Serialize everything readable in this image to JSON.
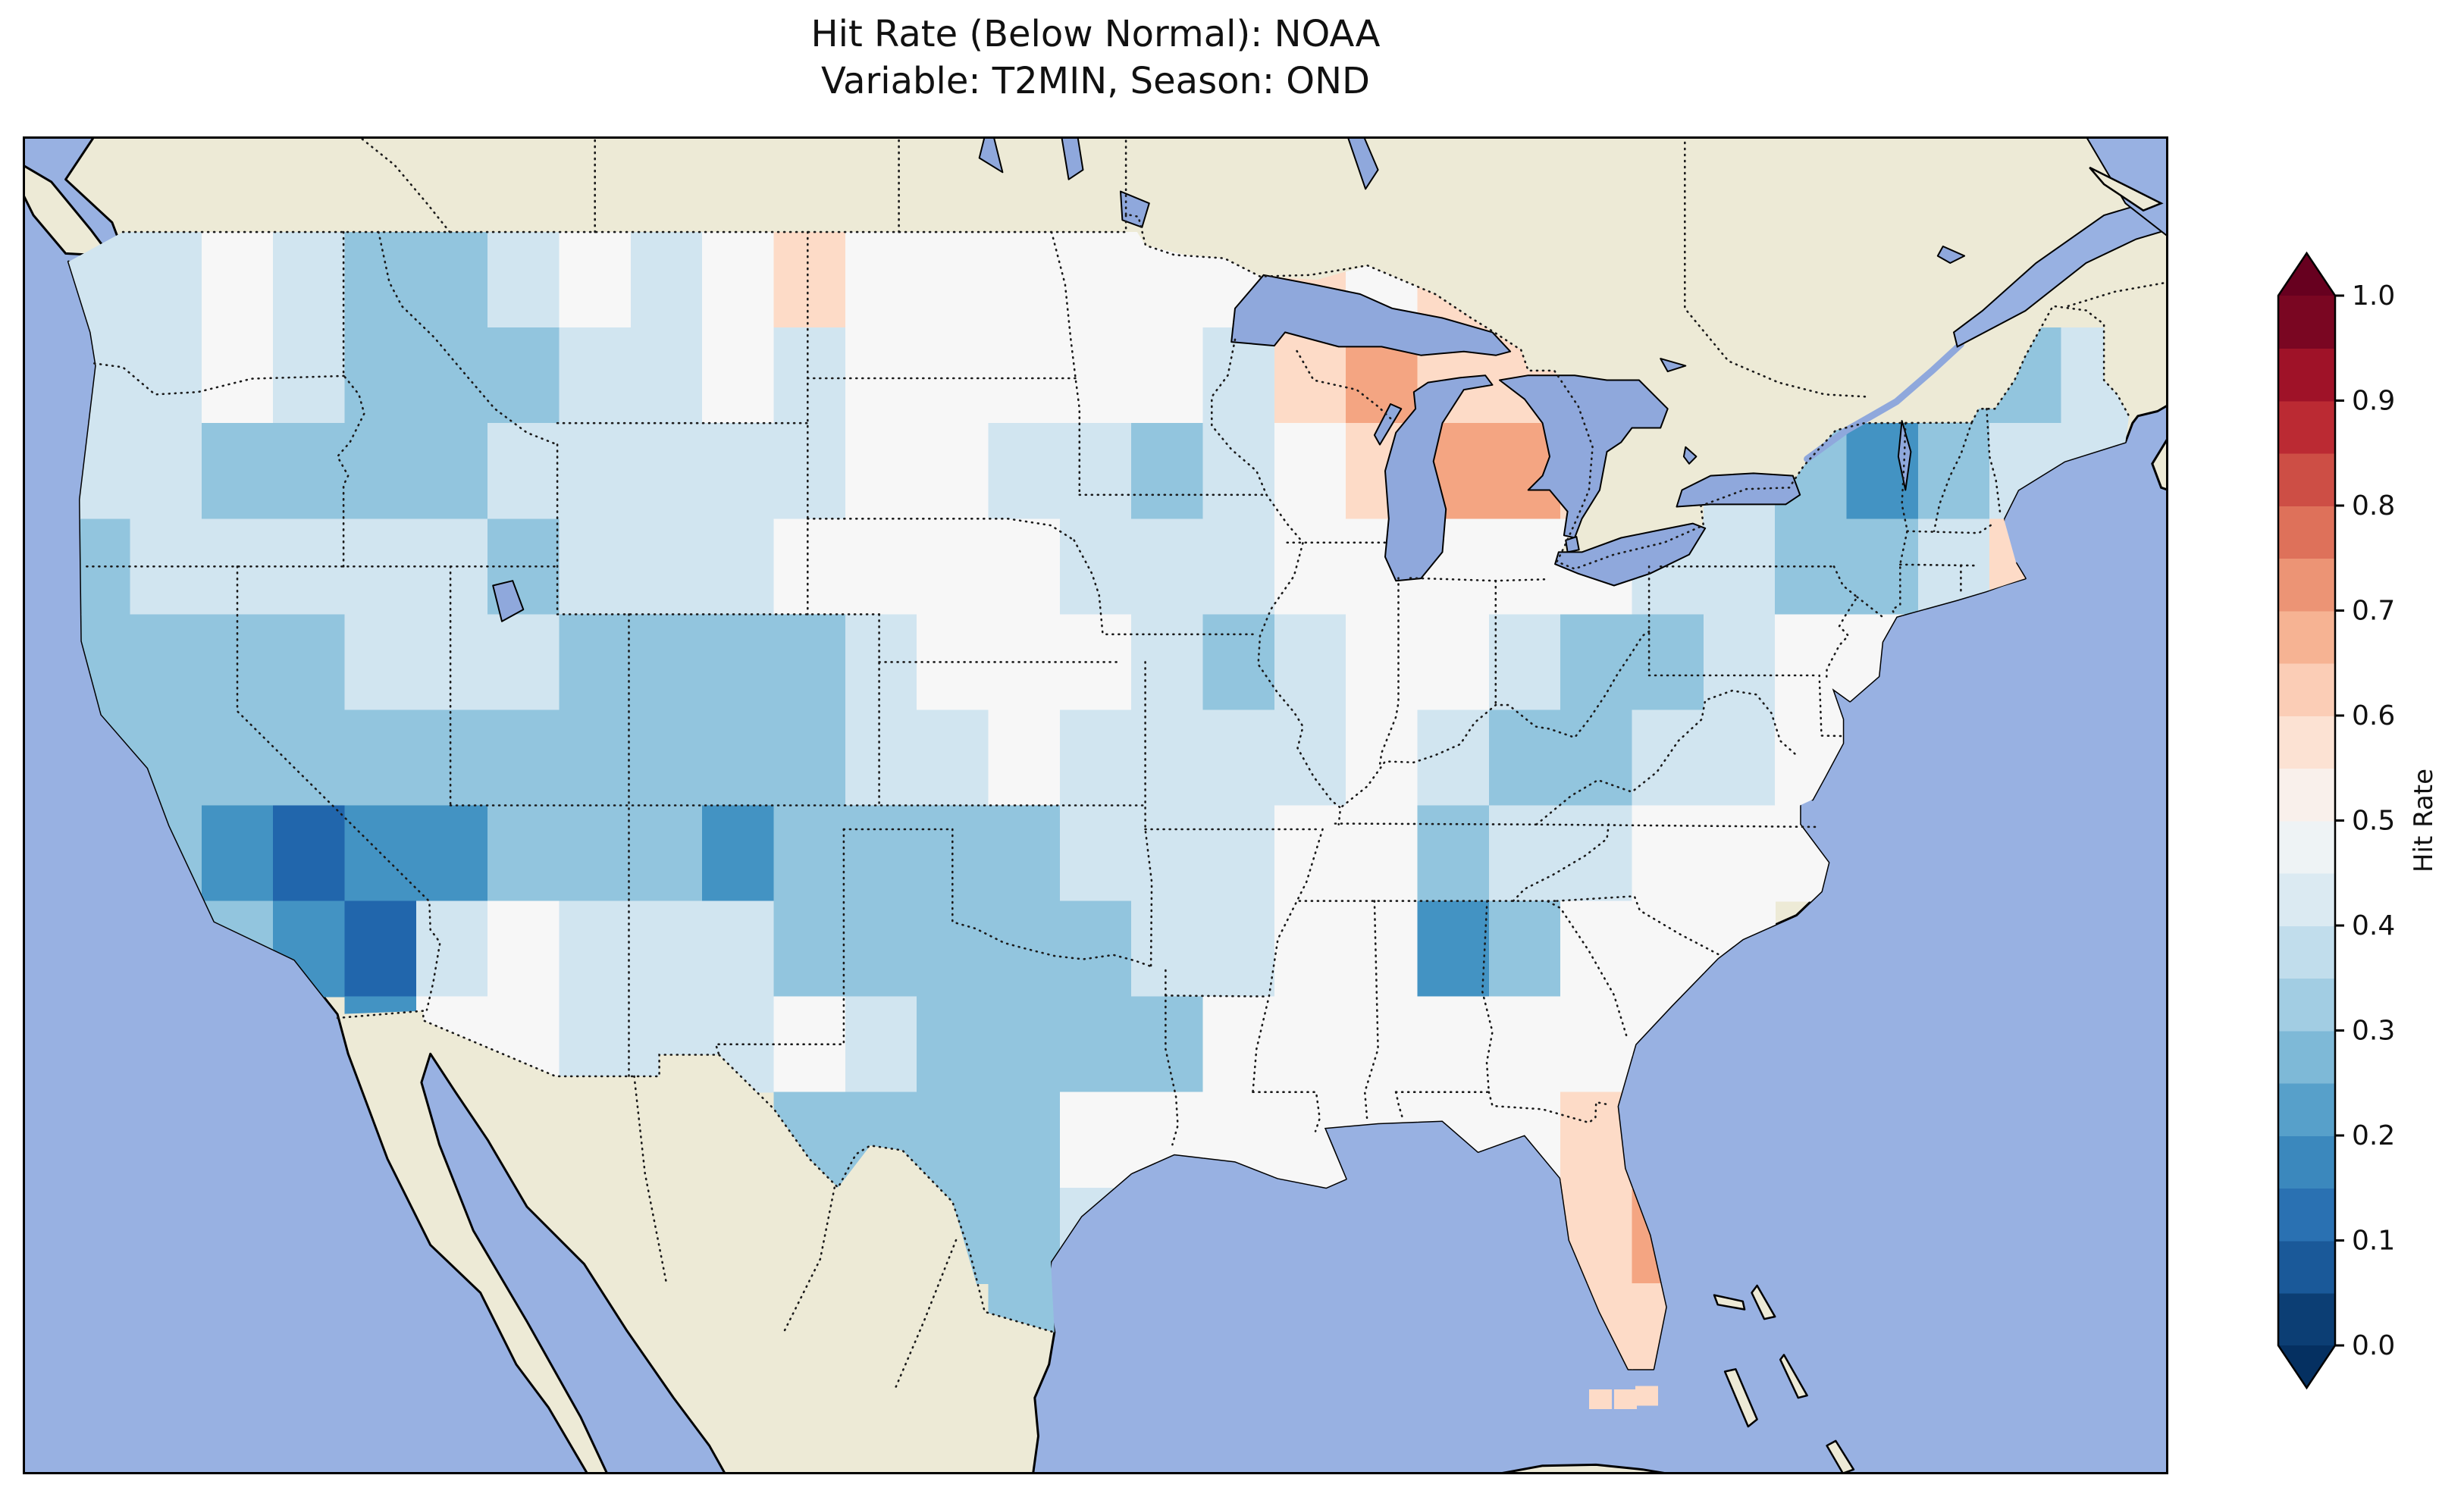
{
  "title": {
    "line1": "Hit Rate (Below Normal): NOAA",
    "line2": "Variable: T2MIN, Season: OND"
  },
  "colorbar": {
    "label": "Hit Rate",
    "tick_labels": [
      "1.0",
      "0.9",
      "0.8",
      "0.7",
      "0.6",
      "0.5",
      "0.4",
      "0.3",
      "0.2",
      "0.1",
      "0.0"
    ],
    "tick_values": [
      1.0,
      0.9,
      0.8,
      0.7,
      0.6,
      0.5,
      0.4,
      0.3,
      0.2,
      0.1,
      0.0
    ],
    "colormap": "RdBu_r",
    "vmin": 0.0,
    "vmax": 1.0,
    "extend": "both"
  },
  "map": {
    "region": "Contiguous United States with surrounding Canada, Mexico, oceans",
    "ocean_color": "#98b1e2",
    "land_color": "#edead6",
    "lake_color": "#8fa8dc",
    "border_style": "dotted state/province/national borders, solid coastlines"
  },
  "chart_data": {
    "type": "heatmap",
    "title": "Hit Rate (Below Normal): NOAA — Variable: T2MIN, Season: OND",
    "metric": "Hit Rate (Below Normal)",
    "source": "NOAA",
    "variable": "T2MIN",
    "season": "OND",
    "colorbar_label": "Hit Rate",
    "vmin": 0.0,
    "vmax": 1.0,
    "legend_position": "right vertical colorbar with arrow extensions both ends",
    "grid": {
      "lon_west": -125,
      "lon_step_deg": 2,
      "lat_north": 49,
      "lat_step_deg": 2,
      "ncols": 29,
      "nrows": 12,
      "encoding": "each char is hit-rate*10 for the 2x2 degree cell (e.g. 3 = 0.3); '.' = no data (outside CONUS)",
      "rows": [
        "445433454565555556565........",
        "445433344545555546766.....334",
        "4433334444455443456776.432344",
        "3444443444555544455555443346.",
        "33334443333455543455433455...",
        "3333333333344544445433445....",
        ".321223332333344455344555....",
        "..3214544433333445523555.....",
        "....2554445433335555555......",
        "..........3333555555566......",
        "............334......67......",
        ".............3.......66......"
      ]
    },
    "notable_features": [
      "Dark blue (0.1-0.2) minima over southern California / southern Nevada and northern New Mexico",
      "Broad blue (0.2-0.4) across the West, Rockies, Texas and the Plains",
      "Orange maxima (0.6-0.75) over Wisconsin and Michigan near the Great Lakes",
      "Light pink (0.5-0.6) across the Southeast and Gulf Coast, orange over central Florida",
      "Blue pocket (0.2-0.3) over Alabama/Georgia and over the interior Northeast"
    ],
    "florida_keys_cells": [
      {
        "lon": -82.2,
        "lat": 24.78,
        "value": 0.6
      },
      {
        "lon": -81.5,
        "lat": 24.78,
        "value": 0.6
      },
      {
        "lon": -80.9,
        "lat": 24.85,
        "value": 0.6
      }
    ]
  }
}
